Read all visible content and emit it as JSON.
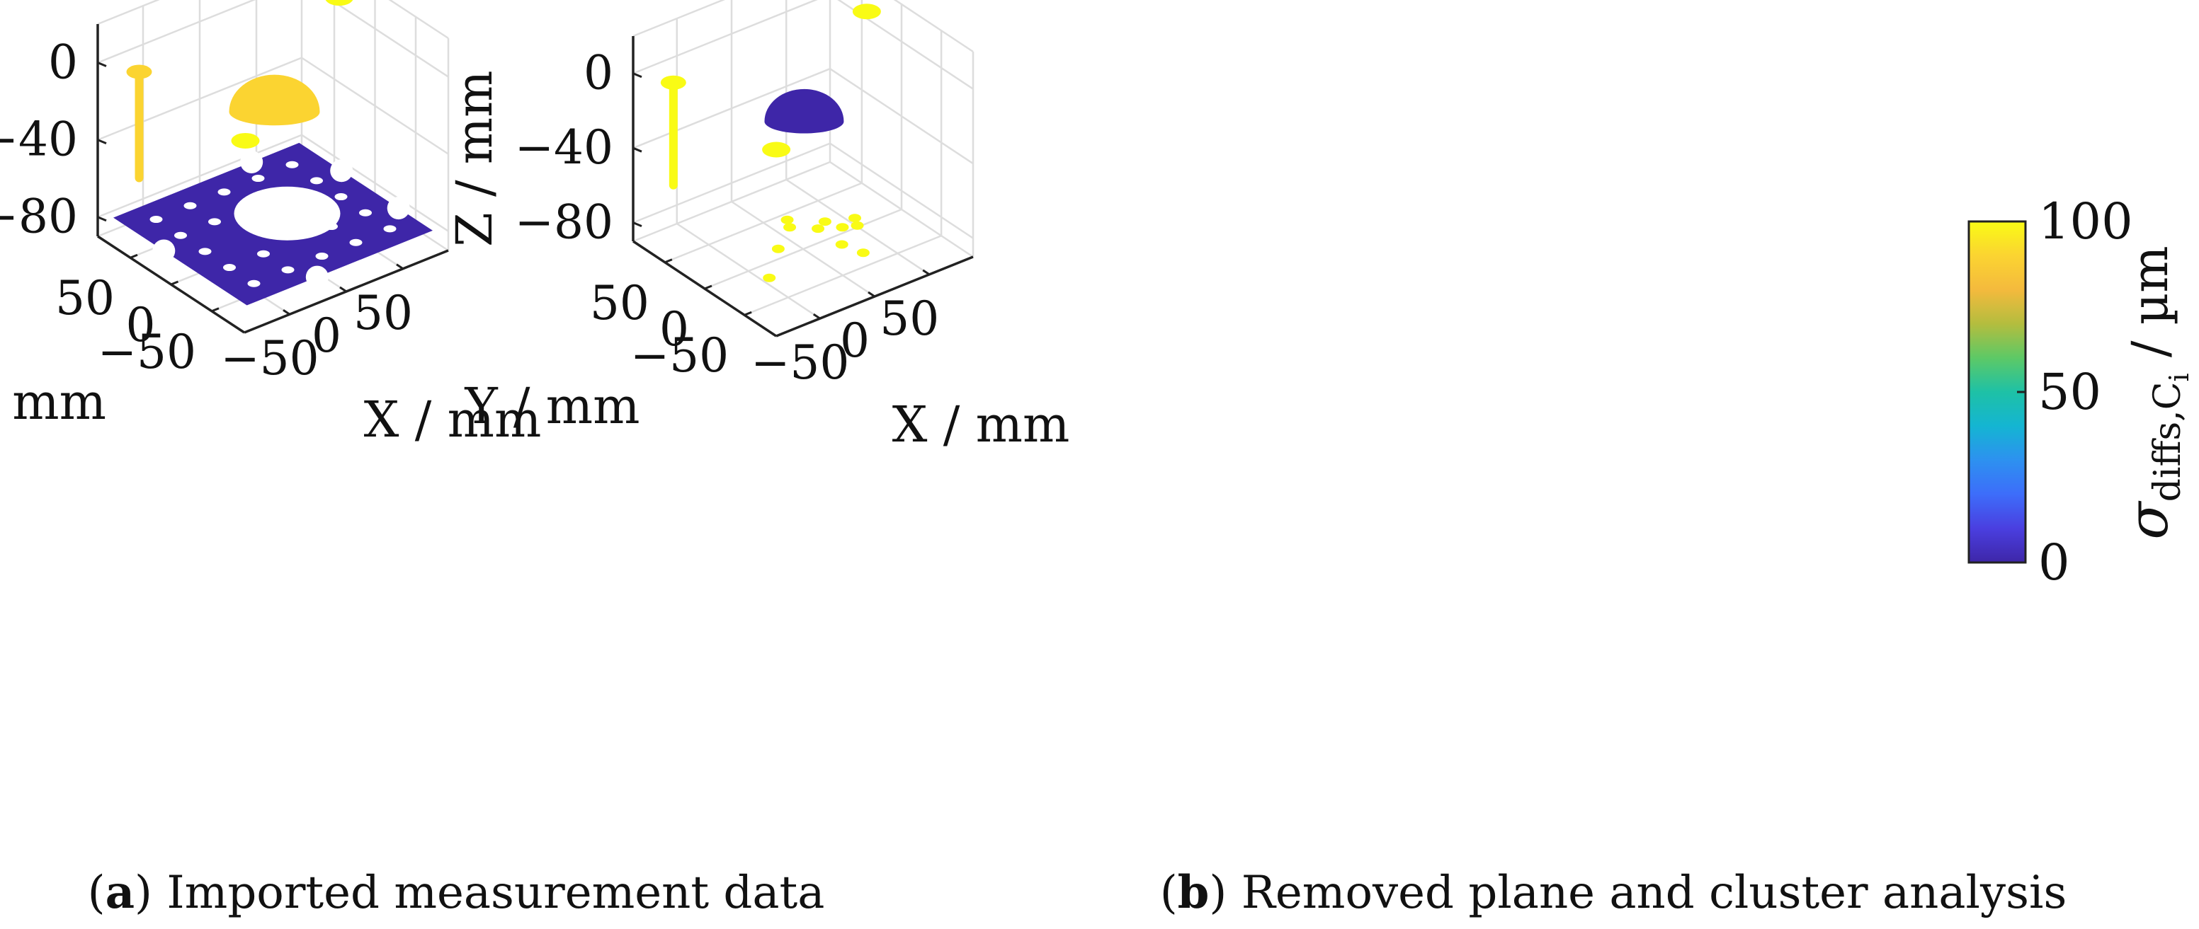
{
  "chart_data": [
    {
      "type": "scatter3d",
      "panel": "a",
      "caption_letter": "a",
      "caption_text": "Imported measurement data",
      "xlabel": "X / mm",
      "ylabel": "Y / mm",
      "zlabel": "Z / mm",
      "x_ticks": [
        "−50",
        "0",
        "50"
      ],
      "y_ticks": [
        "50",
        "0",
        "−50"
      ],
      "z_ticks": [
        "0",
        "−40",
        "−80"
      ],
      "xlim": [
        -90,
        90
      ],
      "ylim": [
        -90,
        90
      ],
      "zlim": [
        -90,
        20
      ],
      "plane": {
        "z": -80,
        "color_value": 0,
        "description": "measured plate surface"
      },
      "clusters": [
        {
          "name": "hemisphere",
          "x": 30,
          "y": 40,
          "z": -40,
          "color_value": 88
        },
        {
          "name": "vertical-pin",
          "x": -75,
          "y": 60,
          "z": -10,
          "color_value": 85
        },
        {
          "name": "top-point",
          "x": 60,
          "y": 80,
          "z": 20,
          "color_value": 100
        },
        {
          "name": "right-point",
          "x": 80,
          "y": 30,
          "z": 10,
          "color_value": 100
        },
        {
          "name": "left-point",
          "x": -10,
          "y": 20,
          "z": -40,
          "color_value": 100
        }
      ]
    },
    {
      "type": "scatter3d",
      "panel": "b",
      "caption_letter": "b",
      "caption_text": "Removed plane and cluster analysis",
      "xlabel": "X / mm",
      "ylabel": "Y / mm",
      "zlabel": "Z / mm",
      "x_ticks": [
        "−50",
        "0",
        "50"
      ],
      "y_ticks": [
        "50",
        "0",
        "−50"
      ],
      "z_ticks": [
        "0",
        "−40",
        "−80"
      ],
      "xlim": [
        -90,
        90
      ],
      "ylim": [
        -90,
        90
      ],
      "zlim": [
        -90,
        20
      ],
      "clusters": [
        {
          "name": "hemisphere",
          "x": 30,
          "y": 40,
          "z": -40,
          "color_value": 2
        },
        {
          "name": "vertical-pin",
          "x": -75,
          "y": 60,
          "z": -10,
          "color_value": 100
        },
        {
          "name": "top-point",
          "x": 60,
          "y": 80,
          "z": 20,
          "color_value": 60
        },
        {
          "name": "right-point",
          "x": 80,
          "y": 30,
          "z": 10,
          "color_value": 100
        },
        {
          "name": "left-point",
          "x": -10,
          "y": 20,
          "z": -40,
          "color_value": 100
        },
        {
          "name": "fragment-1",
          "x": -60,
          "y": -40,
          "z": -80,
          "color_value": 100
        },
        {
          "name": "fragment-2",
          "x": -30,
          "y": -10,
          "z": -80,
          "color_value": 100
        },
        {
          "name": "fragment-3",
          "x": -5,
          "y": 10,
          "z": -80,
          "color_value": 100
        },
        {
          "name": "fragment-4",
          "x": 10,
          "y": -5,
          "z": -80,
          "color_value": 100
        },
        {
          "name": "fragment-5",
          "x": 20,
          "y": 0,
          "z": -80,
          "color_value": 100
        },
        {
          "name": "fragment-6",
          "x": 25,
          "y": -15,
          "z": -80,
          "color_value": 100
        },
        {
          "name": "fragment-7",
          "x": 35,
          "y": -20,
          "z": -80,
          "color_value": 100
        },
        {
          "name": "fragment-8",
          "x": 40,
          "y": -10,
          "z": -80,
          "color_value": 100
        },
        {
          "name": "fragment-9",
          "x": 10,
          "y": -35,
          "z": -80,
          "color_value": 100
        },
        {
          "name": "fragment-10",
          "x": 15,
          "y": -55,
          "z": -80,
          "color_value": 100
        },
        {
          "name": "fragment-11",
          "x": 0,
          "y": 20,
          "z": -80,
          "color_value": 100
        }
      ]
    }
  ],
  "colorbar": {
    "label_sigma": "σ",
    "label_sub_main": "diffs,C",
    "label_sub_sub": "i",
    "label_unit": " / µm",
    "min": 0,
    "max": 100,
    "ticks": [
      "0",
      "50",
      "100"
    ],
    "colormap": [
      "#3e26a8",
      "#4a3fe0",
      "#3d6dfa",
      "#2d91f0",
      "#14b5d2",
      "#1ec1a6",
      "#5dc966",
      "#b4bd3e",
      "#f4ba3d",
      "#fbd431",
      "#f9fb15"
    ]
  }
}
